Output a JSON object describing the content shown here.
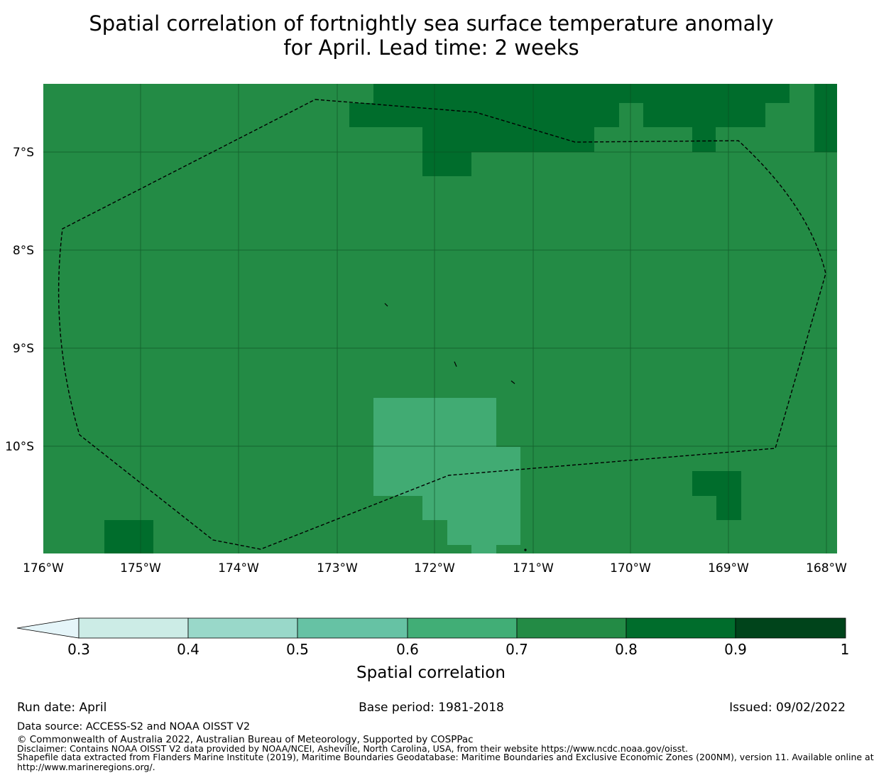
{
  "title": {
    "line1": "Spatial correlation of fortnightly sea surface temperature anomaly",
    "line2": "for April. Lead time: 2 weeks"
  },
  "map": {
    "lon_ticks": [
      "176°W",
      "175°W",
      "174°W",
      "173°W",
      "172°W",
      "171°W",
      "170°W",
      "169°W",
      "168°W"
    ],
    "lat_ticks": [
      "7°S",
      "8°S",
      "9°S",
      "10°S"
    ],
    "lon_range": [
      -176,
      -168
    ],
    "lat_range": [
      -11.1,
      -6.3
    ],
    "colors": {
      "c_0.6_0.7": "#41ab73",
      "c_0.7_0.8": "#238b45",
      "c_0.8_0.9": "#006d2c"
    }
  },
  "colorbar": {
    "label": "Spatial correlation",
    "ticks": [
      "0.3",
      "0.4",
      "0.5",
      "0.6",
      "0.7",
      "0.8",
      "0.9",
      "1"
    ],
    "extend": "min",
    "colors": [
      "#e5f5f9",
      "#ccece6",
      "#99d8c9",
      "#66c2a4",
      "#41ae76",
      "#238b45",
      "#006d2c",
      "#00441b"
    ]
  },
  "footer": {
    "run_date": "Run date: April",
    "base_period": "Base period: 1981-2018",
    "issued": "Issued: 09/02/2022",
    "data_source": "Data source: ACCESS-S2 and NOAA OISST V2",
    "copyright": "© Commonwealth of Australia 2022, Australian Bureau of Meteorology, Supported by COSPPac",
    "disclaimer": "Disclaimer: Contains NOAA OISST V2 data provided by NOAA/NCEI, Asheville, North Carolina, USA, from their website https://www.ncdc.noaa.gov/oisst.",
    "shapefile_1": "Shapefile data extracted from Flanders Marine Institute (2019), Maritime Boundaries Geodatabase: Maritime Boundaries and Exclusive Economic Zones (200NM), version 11. Available online at",
    "shapefile_2": "http://www.marineregions.org/."
  }
}
